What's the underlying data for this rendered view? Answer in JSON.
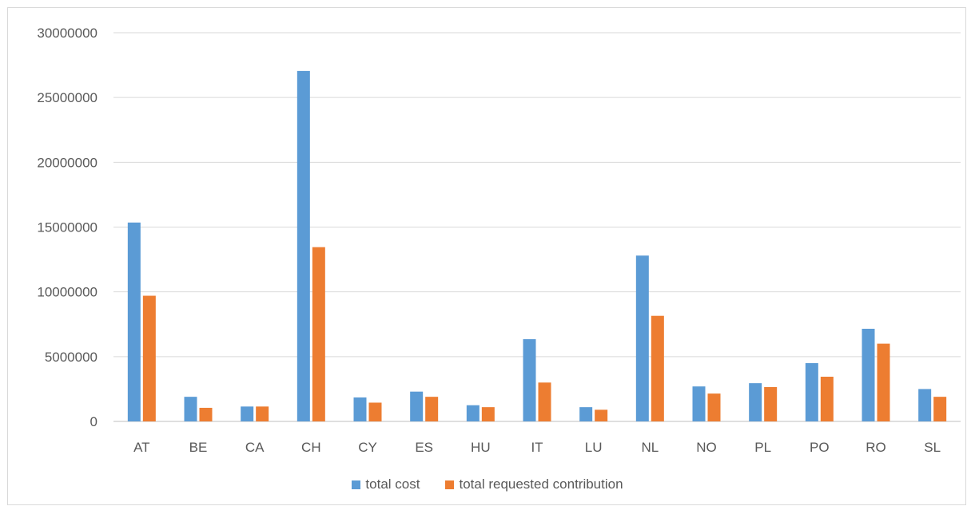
{
  "chart_data": {
    "type": "bar",
    "categories": [
      "AT",
      "BE",
      "CA",
      "CH",
      "CY",
      "ES",
      "HU",
      "IT",
      "LU",
      "NL",
      "NO",
      "PL",
      "PO",
      "RO",
      "SL"
    ],
    "series": [
      {
        "name": "total cost",
        "color": "#5b9bd5",
        "values": [
          15350000,
          1900000,
          1150000,
          27050000,
          1850000,
          2300000,
          1250000,
          6350000,
          1100000,
          12800000,
          2700000,
          2950000,
          4500000,
          7150000,
          2500000
        ]
      },
      {
        "name": "total requested contribution",
        "color": "#ed7d31",
        "values": [
          9700000,
          1050000,
          1150000,
          13450000,
          1450000,
          1900000,
          1100000,
          3000000,
          900000,
          8150000,
          2150000,
          2650000,
          3450000,
          6000000,
          1900000
        ]
      }
    ],
    "ylim": [
      0,
      30000000
    ],
    "yticks": [
      0,
      5000000,
      10000000,
      15000000,
      20000000,
      25000000,
      30000000
    ],
    "grid": true,
    "legend_position": "bottom"
  }
}
